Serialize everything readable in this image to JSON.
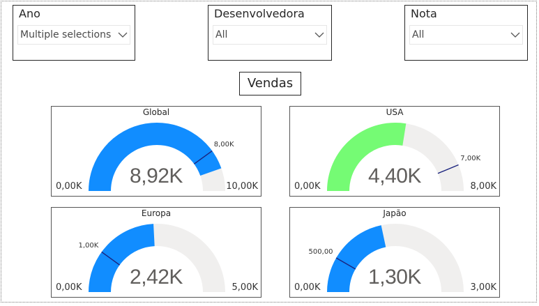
{
  "slicers": [
    {
      "title": "Ano",
      "value": "Multiple selections"
    },
    {
      "title": "Desenvolvedora",
      "value": "All"
    },
    {
      "title": "Nota",
      "value": "All"
    }
  ],
  "header": {
    "title": "Vendas"
  },
  "gauges": {
    "global": {
      "title": "Global",
      "value": 8920,
      "min": 0,
      "max": 10000,
      "target": 8000,
      "display_value": "8,92K",
      "min_label": "0,00K",
      "max_label": "10,00K",
      "target_label": "8,00K",
      "fill_color": "#118dff"
    },
    "usa": {
      "title": "USA",
      "value": 4400,
      "min": 0,
      "max": 8000,
      "target": 7000,
      "display_value": "4,40K",
      "min_label": "0,00K",
      "max_label": "8,00K",
      "target_label": "7,00K",
      "fill_color": "#75fb74"
    },
    "europa": {
      "title": "Europa",
      "value": 2420,
      "min": 0,
      "max": 5000,
      "target": 1000,
      "display_value": "2,42K",
      "min_label": "0,00K",
      "max_label": "5,00K",
      "target_label": "1,00K",
      "fill_color": "#118dff"
    },
    "japao": {
      "title": "Japão",
      "value": 1300,
      "min": 0,
      "max": 3000,
      "target": 500,
      "display_value": "1,30K",
      "min_label": "0,00K",
      "max_label": "3,00K",
      "target_label": "500,00",
      "fill_color": "#118dff"
    }
  },
  "colors": {
    "track": "#f0efee",
    "target_line": "#1a237e"
  },
  "icons": {
    "dropdown": "chevron-down-icon"
  }
}
